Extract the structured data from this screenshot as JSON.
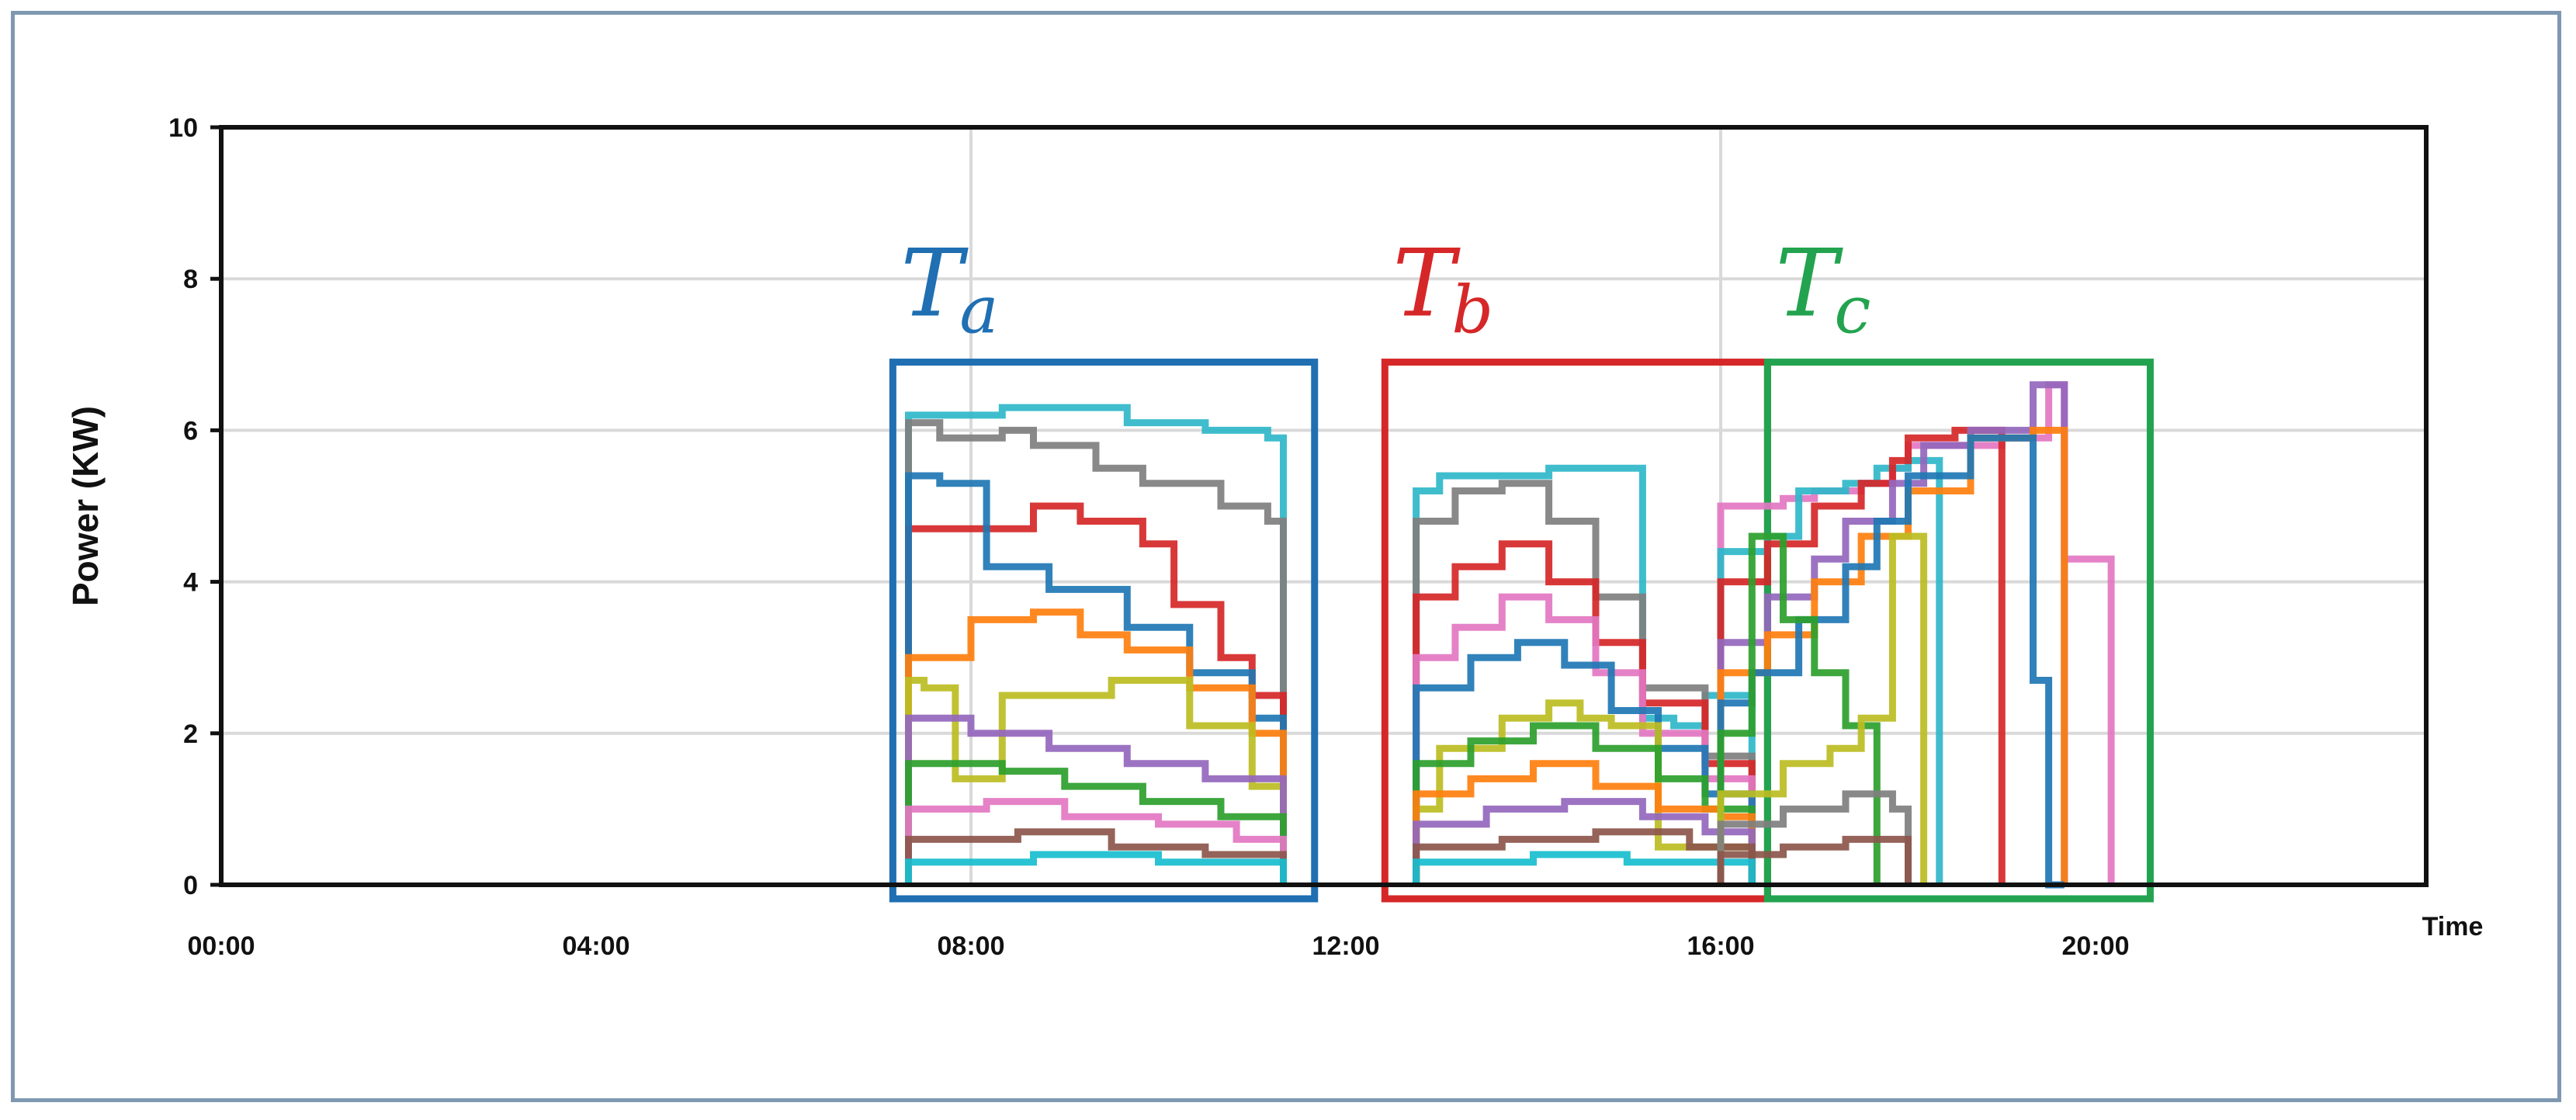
{
  "chart_data": {
    "type": "line",
    "title": "",
    "xlabel": "Time",
    "ylabel": "Power (KW)",
    "ylim": [
      0,
      10
    ],
    "xlim": [
      "00:00",
      "24:00"
    ],
    "x_ticks": [
      "00:00",
      "04:00",
      "08:00",
      "12:00",
      "16:00",
      "20:00"
    ],
    "y_ticks": [
      "0",
      "2",
      "4",
      "6",
      "8",
      "10"
    ],
    "grid": true,
    "line_shape": "step",
    "periods": [
      {
        "symbol": "T",
        "subscript": "a",
        "color": "#1f6fb2",
        "start": "07:10",
        "end": "11:40",
        "ymax": 6.9
      },
      {
        "symbol": "T",
        "subscript": "b",
        "color": "#d62728",
        "start": "12:25",
        "end": "16:30",
        "ymax": 6.9
      },
      {
        "symbol": "T",
        "subscript": "c",
        "color": "#23a34f",
        "start": "16:30",
        "end": "20:35",
        "ymax": 6.9
      }
    ],
    "series": [
      {
        "color": "#2fb7c9",
        "x": [
          "07:20",
          "07:50",
          "08:20",
          "09:40",
          "10:30",
          "11:10",
          "11:20"
        ],
        "y": [
          6.2,
          6.2,
          6.3,
          6.1,
          6.0,
          5.9,
          0
        ]
      },
      {
        "color": "#7f7f7f",
        "x": [
          "07:20",
          "07:40",
          "08:20",
          "08:40",
          "09:20",
          "09:50",
          "10:40",
          "11:10",
          "11:20"
        ],
        "y": [
          6.1,
          5.9,
          6.0,
          5.8,
          5.5,
          5.3,
          5.0,
          4.8,
          0
        ]
      },
      {
        "color": "#d62728",
        "x": [
          "07:20",
          "08:40",
          "09:10",
          "09:50",
          "10:10",
          "10:40",
          "11:00",
          "11:20"
        ],
        "y": [
          4.7,
          5.0,
          4.8,
          4.5,
          3.7,
          3.0,
          2.5,
          0
        ]
      },
      {
        "color": "#1f77b4",
        "x": [
          "07:20",
          "07:40",
          "08:10",
          "08:50",
          "09:40",
          "10:20",
          "11:00",
          "11:20"
        ],
        "y": [
          5.4,
          5.3,
          4.2,
          3.9,
          3.4,
          2.8,
          2.2,
          0
        ]
      },
      {
        "color": "#ff7f0e",
        "x": [
          "07:20",
          "08:00",
          "08:40",
          "09:10",
          "09:40",
          "10:20",
          "11:00",
          "11:20"
        ],
        "y": [
          3.0,
          3.5,
          3.6,
          3.3,
          3.1,
          2.6,
          2.0,
          0
        ]
      },
      {
        "color": "#bcbd22",
        "x": [
          "07:20",
          "07:30",
          "07:50",
          "08:20",
          "09:30",
          "10:20",
          "11:00",
          "11:20"
        ],
        "y": [
          2.7,
          2.6,
          1.4,
          2.5,
          2.7,
          2.1,
          1.3,
          0
        ]
      },
      {
        "color": "#9467bd",
        "x": [
          "07:20",
          "08:00",
          "08:50",
          "09:40",
          "10:30",
          "11:20"
        ],
        "y": [
          2.2,
          2.0,
          1.8,
          1.6,
          1.4,
          0
        ]
      },
      {
        "color": "#2ca02c",
        "x": [
          "07:20",
          "08:20",
          "09:00",
          "09:50",
          "10:40",
          "11:20"
        ],
        "y": [
          1.6,
          1.5,
          1.3,
          1.1,
          0.9,
          0
        ]
      },
      {
        "color": "#e377c2",
        "x": [
          "07:20",
          "08:10",
          "09:00",
          "10:00",
          "10:50",
          "11:20"
        ],
        "y": [
          1.0,
          1.1,
          0.9,
          0.8,
          0.6,
          0
        ]
      },
      {
        "color": "#8c564b",
        "x": [
          "07:20",
          "08:30",
          "09:30",
          "10:30",
          "11:20"
        ],
        "y": [
          0.6,
          0.7,
          0.5,
          0.4,
          0
        ]
      },
      {
        "color": "#17becf",
        "x": [
          "07:20",
          "08:40",
          "10:00",
          "11:20"
        ],
        "y": [
          0.3,
          0.4,
          0.3,
          0
        ]
      },
      {
        "color": "#2fb7c9",
        "x": [
          "12:45",
          "13:00",
          "14:10",
          "14:50",
          "15:10",
          "15:30",
          "15:50",
          "16:20"
        ],
        "y": [
          5.2,
          5.4,
          5.5,
          5.5,
          2.2,
          2.1,
          2.5,
          0
        ]
      },
      {
        "color": "#7f7f7f",
        "x": [
          "12:45",
          "13:10",
          "13:40",
          "14:10",
          "14:40",
          "15:10",
          "15:50",
          "16:20"
        ],
        "y": [
          4.8,
          5.2,
          5.3,
          4.8,
          3.8,
          2.6,
          1.7,
          0
        ]
      },
      {
        "color": "#d62728",
        "x": [
          "12:45",
          "13:10",
          "13:40",
          "14:10",
          "14:40",
          "15:10",
          "15:50",
          "16:20"
        ],
        "y": [
          3.8,
          4.2,
          4.5,
          4.0,
          3.2,
          2.4,
          1.6,
          0
        ]
      },
      {
        "color": "#e377c2",
        "x": [
          "12:45",
          "13:10",
          "13:40",
          "14:10",
          "14:40",
          "15:10",
          "15:50",
          "16:20"
        ],
        "y": [
          3.0,
          3.4,
          3.8,
          3.5,
          2.8,
          2.0,
          1.4,
          0
        ]
      },
      {
        "color": "#1f77b4",
        "x": [
          "12:45",
          "13:20",
          "13:50",
          "14:20",
          "14:50",
          "15:20",
          "15:50",
          "16:20"
        ],
        "y": [
          2.6,
          3.0,
          3.2,
          2.9,
          2.3,
          1.8,
          1.2,
          0
        ]
      },
      {
        "color": "#bcbd22",
        "x": [
          "12:45",
          "13:00",
          "13:40",
          "14:10",
          "14:30",
          "14:50",
          "15:20",
          "16:20"
        ],
        "y": [
          1.0,
          1.8,
          2.2,
          2.4,
          2.2,
          2.1,
          0.5,
          0
        ]
      },
      {
        "color": "#2ca02c",
        "x": [
          "12:45",
          "13:20",
          "14:00",
          "14:40",
          "15:20",
          "15:50",
          "16:20"
        ],
        "y": [
          1.6,
          1.9,
          2.1,
          1.8,
          1.4,
          1.0,
          0
        ]
      },
      {
        "color": "#ff7f0e",
        "x": [
          "12:45",
          "13:20",
          "14:00",
          "14:40",
          "15:20",
          "16:00",
          "16:20"
        ],
        "y": [
          1.2,
          1.4,
          1.6,
          1.3,
          1.0,
          0.9,
          0
        ]
      },
      {
        "color": "#9467bd",
        "x": [
          "12:45",
          "13:30",
          "14:20",
          "15:10",
          "15:50",
          "16:20"
        ],
        "y": [
          0.8,
          1.0,
          1.1,
          0.9,
          0.7,
          0
        ]
      },
      {
        "color": "#8c564b",
        "x": [
          "12:45",
          "13:40",
          "14:40",
          "15:40",
          "16:20"
        ],
        "y": [
          0.5,
          0.6,
          0.7,
          0.5,
          0
        ]
      },
      {
        "color": "#17becf",
        "x": [
          "12:45",
          "14:00",
          "15:00",
          "16:20"
        ],
        "y": [
          0.3,
          0.4,
          0.3,
          0
        ]
      },
      {
        "color": "#e377c2",
        "x": [
          "16:00",
          "16:40",
          "17:00",
          "17:30",
          "17:50",
          "18:00",
          "19:00",
          "19:30",
          "19:40",
          "20:10"
        ],
        "y": [
          5.0,
          5.1,
          5.2,
          5.3,
          5.5,
          5.8,
          5.9,
          6.6,
          4.3,
          0
        ]
      },
      {
        "color": "#2fb7c9",
        "x": [
          "16:00",
          "16:30",
          "16:50",
          "17:20",
          "17:40",
          "18:00",
          "18:20"
        ],
        "y": [
          4.4,
          4.6,
          5.2,
          5.3,
          5.5,
          5.6,
          0
        ]
      },
      {
        "color": "#d62728",
        "x": [
          "16:00",
          "16:30",
          "17:00",
          "17:30",
          "17:50",
          "18:00",
          "18:30",
          "19:00"
        ],
        "y": [
          4.0,
          4.5,
          5.0,
          5.3,
          5.6,
          5.9,
          6.0,
          0
        ]
      },
      {
        "color": "#9467bd",
        "x": [
          "16:00",
          "16:30",
          "17:00",
          "17:20",
          "17:50",
          "18:10",
          "18:40",
          "19:10",
          "19:20",
          "19:40"
        ],
        "y": [
          3.2,
          3.8,
          4.3,
          4.8,
          5.3,
          5.8,
          6.0,
          6.0,
          6.6,
          0
        ]
      },
      {
        "color": "#ff7f0e",
        "x": [
          "16:00",
          "16:30",
          "17:00",
          "17:30",
          "18:00",
          "18:40",
          "19:20",
          "19:40"
        ],
        "y": [
          2.8,
          3.3,
          4.0,
          4.6,
          5.2,
          5.9,
          6.0,
          0
        ]
      },
      {
        "color": "#1f77b4",
        "x": [
          "16:00",
          "16:20",
          "16:50",
          "17:20",
          "17:40",
          "18:00",
          "18:40",
          "19:20",
          "19:30",
          "19:40"
        ],
        "y": [
          2.4,
          2.8,
          3.5,
          4.2,
          4.8,
          5.4,
          5.9,
          2.7,
          0,
          0
        ]
      },
      {
        "color": "#2ca02c",
        "x": [
          "16:00",
          "16:20",
          "16:40",
          "17:00",
          "17:20",
          "17:40"
        ],
        "y": [
          2.0,
          4.6,
          3.5,
          2.8,
          2.1,
          0
        ]
      },
      {
        "color": "#bcbd22",
        "x": [
          "16:00",
          "16:40",
          "17:10",
          "17:30",
          "17:50",
          "18:10"
        ],
        "y": [
          1.2,
          1.6,
          1.8,
          2.2,
          4.6,
          0
        ]
      },
      {
        "color": "#7f7f7f",
        "x": [
          "16:00",
          "16:40",
          "17:20",
          "17:50",
          "18:00"
        ],
        "y": [
          0.8,
          1.0,
          1.2,
          1.0,
          0
        ]
      },
      {
        "color": "#8c564b",
        "x": [
          "16:00",
          "16:40",
          "17:20",
          "18:00"
        ],
        "y": [
          0.4,
          0.5,
          0.6,
          0
        ]
      }
    ]
  }
}
